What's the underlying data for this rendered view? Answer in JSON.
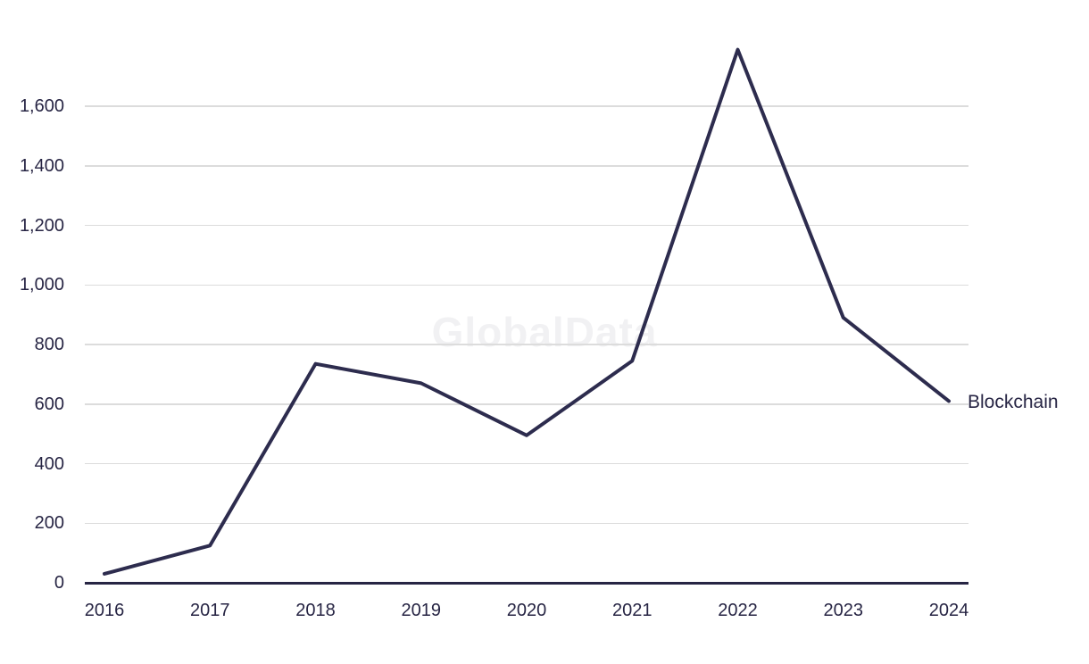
{
  "chart_data": {
    "type": "line",
    "title": "",
    "xlabel": "",
    "ylabel": "",
    "watermark": "GlobalData",
    "series_label": "Blockchain",
    "categories": [
      "2016",
      "2017",
      "2018",
      "2019",
      "2020",
      "2021",
      "2022",
      "2023",
      "2024"
    ],
    "series": [
      {
        "name": "Blockchain",
        "values": [
          30,
          125,
          735,
          670,
          495,
          745,
          1790,
          890,
          610
        ]
      }
    ],
    "ylim": [
      0,
      1800
    ],
    "yticks": [
      0,
      200,
      400,
      600,
      800,
      1000,
      1200,
      1400,
      1600
    ],
    "ytick_labels": [
      "0",
      "200",
      "400",
      "600",
      "800",
      "1,000",
      "1,200",
      "1,400",
      "1,600"
    ],
    "grid": "horizontal-only",
    "legend_position": "right-of-last-point",
    "colors": {
      "line": "#2d2c4e",
      "grid": "#dcdcdc",
      "axis": "#272544",
      "tick_text": "#272544",
      "watermark": "#f1f1f3",
      "background": "#ffffff"
    }
  }
}
